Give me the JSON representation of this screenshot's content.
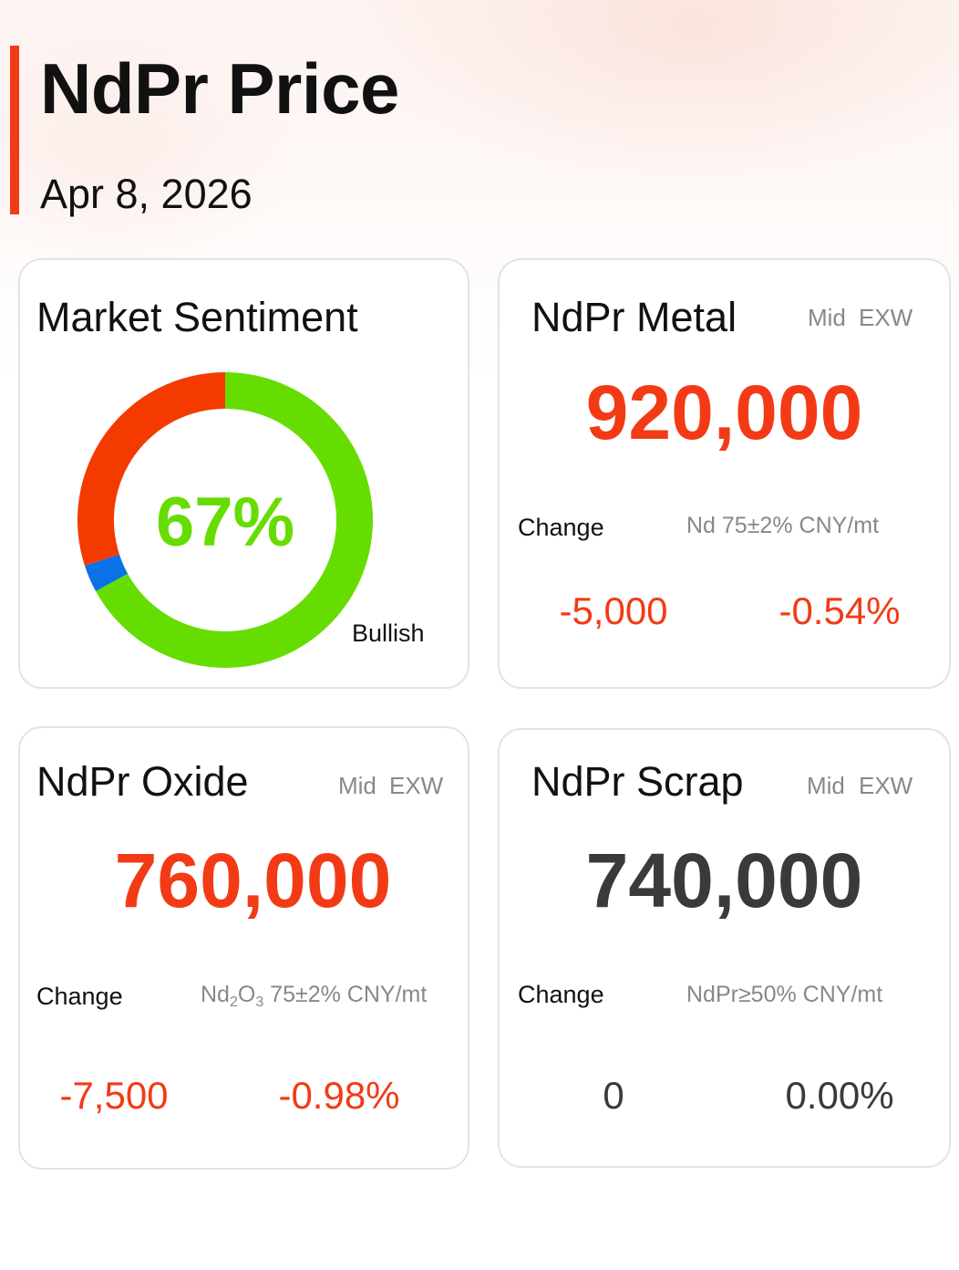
{
  "header": {
    "title": "NdPr Price",
    "date": "Apr 8, 2026"
  },
  "colors": {
    "accent": "#f23b16",
    "up_red": "#f23b16",
    "neutral_dark": "#3a3a3a",
    "bullish_green": "#66dd00",
    "bearish_red": "#f53a00",
    "neutral_blue": "#0a72e6"
  },
  "sentiment": {
    "title": "Market Sentiment",
    "percent_label": "67%",
    "label": "Bullish",
    "segments": [
      {
        "name": "bullish",
        "value": 67,
        "color": "#66dd00"
      },
      {
        "name": "neutral",
        "value": 3,
        "color": "#0a72e6"
      },
      {
        "name": "bearish",
        "value": 30,
        "color": "#f53a00"
      }
    ]
  },
  "metal": {
    "title": "NdPr Metal",
    "tag_mid": "Mid",
    "tag_exw": "EXW",
    "price": "920,000",
    "change_label": "Change",
    "spec": "Nd 75±2% CNY/mt",
    "change_abs": "-5,000",
    "change_pct": "-0.54%"
  },
  "oxide": {
    "title": "NdPr Oxide",
    "tag_mid": "Mid",
    "tag_exw": "EXW",
    "price": "760,000",
    "change_label": "Change",
    "spec_prefix": "Nd",
    "spec_sub1": "2",
    "spec_mid": "O",
    "spec_sub2": "3",
    "spec_suffix": " 75±2% CNY/mt",
    "change_abs": "-7,500",
    "change_pct": "-0.98%"
  },
  "scrap": {
    "title": "NdPr Scrap",
    "tag_mid": "Mid",
    "tag_exw": "EXW",
    "price": "740,000",
    "change_label": "Change",
    "spec": "NdPr≥50% CNY/mt",
    "change_abs": "0",
    "change_pct": "0.00%"
  }
}
